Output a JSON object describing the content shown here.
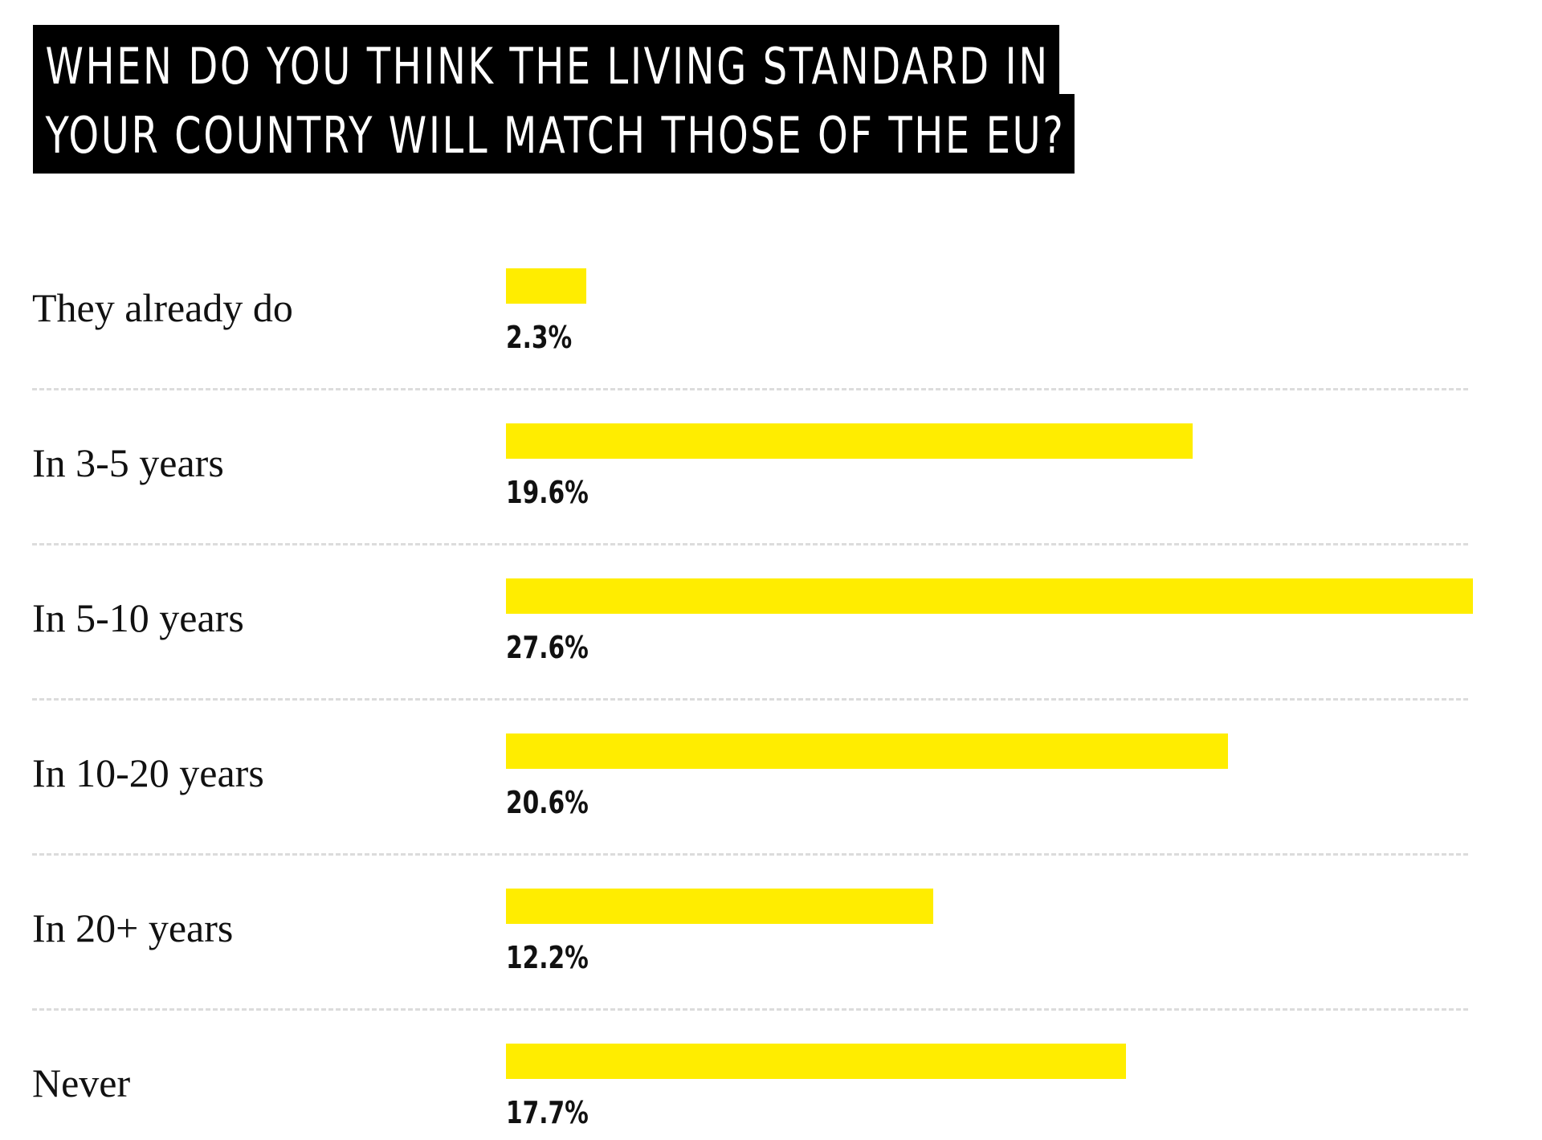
{
  "title": {
    "line1": "WHEN DO YOU THINK THE LIVING STANDARD IN",
    "line2": "YOUR COUNTRY WILL MATCH THOSE OF THE EU?"
  },
  "colors": {
    "bar": "#ffed00",
    "title_bg": "#000000",
    "title_text": "#ffffff",
    "divider": "#dcdcdc"
  },
  "chart_data": {
    "type": "bar",
    "orientation": "horizontal",
    "title": "WHEN DO YOU THINK THE LIVING STANDARD IN YOUR COUNTRY WILL MATCH THOSE OF THE EU?",
    "categories": [
      "They already do",
      "In 3-5 years",
      "In 5-10 years",
      "In 10-20 years",
      "In 20+ years",
      "Never"
    ],
    "values": [
      2.3,
      19.6,
      27.6,
      20.6,
      12.2,
      17.7
    ],
    "value_labels": [
      "2.3%",
      "19.6%",
      "27.6%",
      "20.6%",
      "12.2%",
      "17.7%"
    ],
    "unit": "%",
    "xlabel": "",
    "ylabel": "",
    "xlim": [
      0,
      27.6
    ],
    "grid": false,
    "legend": "none"
  }
}
